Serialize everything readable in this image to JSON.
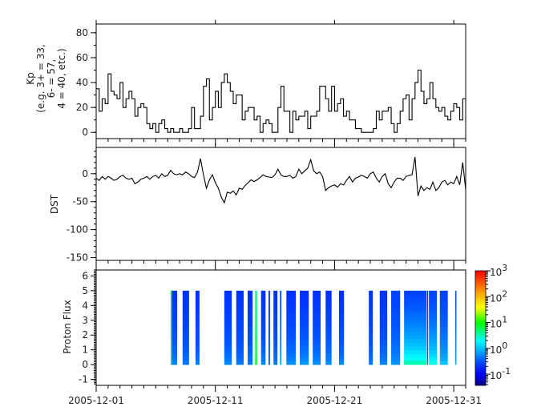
{
  "chart_data": [
    {
      "type": "line",
      "style": "step",
      "ylabel_lines": [
        "Kp",
        "(e.g. 3+ = 33,",
        "6- = 57,",
        "4 = 40, etc.)"
      ],
      "ylim": [
        -5,
        87
      ],
      "yticks": [
        0,
        20,
        40,
        60,
        80
      ],
      "xlim": [
        "2005-12-01",
        "2006-01-01"
      ],
      "line_color": "#000000",
      "values_6h_by_date": {
        "2005-12-01": [
          35,
          17,
          27,
          23
        ],
        "2005-12-02": [
          47,
          33,
          30,
          27
        ],
        "2005-12-03": [
          40,
          20,
          27,
          33
        ],
        "2005-12-04": [
          27,
          13,
          20,
          23
        ],
        "2005-12-05": [
          20,
          7,
          3,
          7
        ],
        "2005-12-06": [
          0,
          7,
          10,
          3
        ],
        "2005-12-07": [
          0,
          3,
          0,
          0
        ],
        "2005-12-08": [
          3,
          0,
          0,
          3
        ],
        "2005-12-09": [
          20,
          3,
          3,
          13
        ],
        "2005-12-10": [
          37,
          43,
          10,
          20
        ],
        "2005-12-11": [
          33,
          20,
          40,
          47
        ],
        "2005-12-12": [
          40,
          33,
          23,
          30
        ],
        "2005-12-13": [
          30,
          10,
          17,
          20
        ],
        "2005-12-14": [
          20,
          10,
          13,
          0
        ],
        "2005-12-15": [
          7,
          10,
          7,
          0
        ],
        "2005-12-16": [
          0,
          20,
          37,
          17
        ],
        "2005-12-17": [
          17,
          0,
          17,
          10
        ],
        "2005-12-18": [
          13,
          13,
          17,
          3
        ],
        "2005-12-19": [
          13,
          13,
          17,
          37
        ],
        "2005-12-20": [
          37,
          27,
          17,
          37
        ],
        "2005-12-21": [
          17,
          23,
          27,
          13
        ],
        "2005-12-22": [
          17,
          10,
          10,
          3
        ],
        "2005-12-23": [
          3,
          0,
          0,
          0
        ],
        "2005-12-24": [
          0,
          3,
          17,
          10
        ],
        "2005-12-25": [
          17,
          17,
          20,
          7
        ],
        "2005-12-26": [
          0,
          7,
          17,
          27
        ],
        "2005-12-27": [
          30,
          10,
          27,
          40
        ],
        "2005-12-28": [
          50,
          33,
          23,
          27
        ],
        "2005-12-29": [
          40,
          27,
          20,
          17
        ],
        "2005-12-30": [
          20,
          13,
          10,
          17
        ],
        "2005-12-31": [
          23,
          20,
          10,
          27
        ]
      }
    },
    {
      "type": "line",
      "ylabel": "DST",
      "ylim": [
        -155,
        47
      ],
      "yticks": [
        0,
        -50,
        -100,
        -150
      ],
      "xlim": [
        "2005-12-01",
        "2006-01-01"
      ],
      "line_color": "#000000",
      "values_6h_by_date": {
        "2005-12-01": [
          -8,
          -12,
          -5,
          -10
        ],
        "2005-12-02": [
          -5,
          -8,
          -12,
          -10
        ],
        "2005-12-03": [
          -5,
          -3,
          -8,
          -10
        ],
        "2005-12-04": [
          -8,
          -18,
          -15,
          -10
        ],
        "2005-12-05": [
          -8,
          -5,
          -10,
          -5
        ],
        "2005-12-06": [
          -3,
          -8,
          0,
          -5
        ],
        "2005-12-07": [
          -3,
          6,
          0,
          -2
        ],
        "2005-12-08": [
          0,
          -2,
          3,
          0
        ],
        "2005-12-09": [
          -5,
          -7,
          3,
          27
        ],
        "2005-12-10": [
          -2,
          -26,
          -11,
          -2
        ],
        "2005-12-11": [
          -16,
          -26,
          -42,
          -52
        ],
        "2005-12-12": [
          -33,
          -35,
          -31,
          -38
        ],
        "2005-12-13": [
          -26,
          -28,
          -21,
          -16
        ],
        "2005-12-14": [
          -11,
          -14,
          -11,
          -7
        ],
        "2005-12-15": [
          -2,
          -5,
          -6,
          -7
        ],
        "2005-12-16": [
          -2,
          8,
          -2,
          -5
        ],
        "2005-12-17": [
          -5,
          -3,
          -8,
          -5
        ],
        "2005-12-18": [
          8,
          0,
          5,
          10
        ],
        "2005-12-19": [
          25,
          5,
          0,
          3
        ],
        "2005-12-20": [
          -5,
          -30,
          -25,
          -22
        ],
        "2005-12-21": [
          -20,
          -24,
          -18,
          -20
        ],
        "2005-12-22": [
          -12,
          -5,
          -15,
          -8
        ],
        "2005-12-23": [
          -6,
          -3,
          -5,
          -8
        ],
        "2005-12-24": [
          0,
          3,
          -8,
          -15
        ],
        "2005-12-25": [
          -5,
          0,
          -18,
          -25
        ],
        "2005-12-26": [
          -15,
          -8,
          -8,
          -12
        ],
        "2005-12-27": [
          -5,
          -3,
          -2,
          30
        ],
        "2005-12-28": [
          -40,
          -22,
          -30,
          -25
        ],
        "2005-12-29": [
          -28,
          -15,
          -30,
          -25
        ],
        "2005-12-30": [
          -15,
          -12,
          -20,
          -15
        ],
        "2005-12-31": [
          -18,
          -5,
          -20,
          20
        ],
        "2006-01-01": [
          -28
        ]
      }
    },
    {
      "type": "heatmap",
      "ylabel": "Proton Flux",
      "ylim": [
        -1.4,
        6.4
      ],
      "yticks": [
        -1,
        0,
        1,
        2,
        3,
        4,
        5,
        6
      ],
      "channel_range": [
        0,
        5
      ],
      "xlim": [
        "2005-12-01",
        "2006-01-01"
      ],
      "xticks": [
        "2005-12-01",
        "2005-12-11",
        "2005-12-21",
        "2005-12-31"
      ],
      "colorbar": {
        "scale": "log",
        "range": [
          0.037,
          1000
        ],
        "tick_labels": [
          {
            "base": "10",
            "exp": "3",
            "value": 1000
          },
          {
            "base": "10",
            "exp": "2",
            "value": 100
          },
          {
            "base": "10",
            "exp": "1",
            "value": 10
          },
          {
            "base": "10",
            "exp": "0",
            "value": 1
          },
          {
            "base": "10",
            "exp": "-1",
            "value": 0.1
          }
        ],
        "colormap": [
          "#00007f",
          "#0000ff",
          "#0050ff",
          "#00ffff",
          "#00ff00",
          "#ffff00",
          "#ff9900",
          "#ff0000"
        ]
      },
      "columns": [
        {
          "start": "2005-12-07T06",
          "end": "2005-12-07T19",
          "flux": [
            0.7,
            0.2
          ],
          "edge_flux": 8
        },
        {
          "start": "2005-12-08T06",
          "end": "2005-12-08T19",
          "flux": [
            0.6,
            0.2
          ]
        },
        {
          "start": "2005-12-09T08",
          "end": "2005-12-09T16",
          "flux": [
            0.6,
            0.2
          ]
        },
        {
          "start": "2005-12-11T18",
          "end": "2005-12-12T09",
          "flux": [
            0.7,
            0.2
          ]
        },
        {
          "start": "2005-12-12T18",
          "end": "2005-12-13T09",
          "flux": [
            0.6,
            0.2
          ]
        },
        {
          "start": "2005-12-13T17",
          "end": "2005-12-14T03",
          "flux": [
            0.6,
            0.2
          ]
        },
        {
          "start": "2005-12-14T08",
          "end": "2005-12-14T12",
          "flux": [
            8,
            4
          ]
        },
        {
          "start": "2005-12-14T20",
          "end": "2005-12-15T05",
          "flux": [
            0.7,
            0.2
          ]
        },
        {
          "start": "2005-12-15T11",
          "end": "2005-12-15T14",
          "flux": [
            0.5,
            0.2
          ]
        },
        {
          "start": "2005-12-15T21",
          "end": "2005-12-16T05",
          "flux": [
            0.6,
            0.2
          ]
        },
        {
          "start": "2005-12-16T10",
          "end": "2005-12-16T13",
          "flux": [
            1.2,
            0.3
          ]
        },
        {
          "start": "2005-12-16T23",
          "end": "2005-12-17T18",
          "flux": [
            0.8,
            0.2
          ]
        },
        {
          "start": "2005-12-18T02",
          "end": "2005-12-18T20",
          "flux": [
            0.9,
            0.2
          ]
        },
        {
          "start": "2005-12-19T04",
          "end": "2005-12-19T20",
          "flux": [
            0.8,
            0.2
          ]
        },
        {
          "start": "2005-12-20T06",
          "end": "2005-12-20T18",
          "flux": [
            0.8,
            0.2
          ]
        },
        {
          "start": "2005-12-21T09",
          "end": "2005-12-21T19",
          "flux": [
            0.7,
            0.2
          ]
        },
        {
          "start": "2005-12-23T21",
          "end": "2005-12-24T05",
          "flux": [
            0.6,
            0.2
          ]
        },
        {
          "start": "2005-12-24T19",
          "end": "2005-12-25T10",
          "flux": [
            0.7,
            0.2
          ]
        },
        {
          "start": "2005-12-25T18",
          "end": "2005-12-26T12",
          "flux": [
            0.8,
            0.25
          ]
        },
        {
          "start": "2005-12-26T20",
          "end": "2005-12-28T17",
          "flux": [
            6,
            0.25
          ]
        },
        {
          "start": "2005-12-28T18",
          "end": "2005-12-28T20",
          "flux": [
            0.5,
            0.2
          ]
        },
        {
          "start": "2005-12-28T22",
          "end": "2005-12-29T14",
          "flux": [
            4,
            0.25
          ]
        },
        {
          "start": "2005-12-29T20",
          "end": "2005-12-30T12",
          "flux": [
            1.5,
            0.25
          ]
        },
        {
          "start": "2005-12-31T03",
          "end": "2005-12-31T05",
          "flux": [
            1.2,
            0.3
          ]
        }
      ]
    }
  ]
}
